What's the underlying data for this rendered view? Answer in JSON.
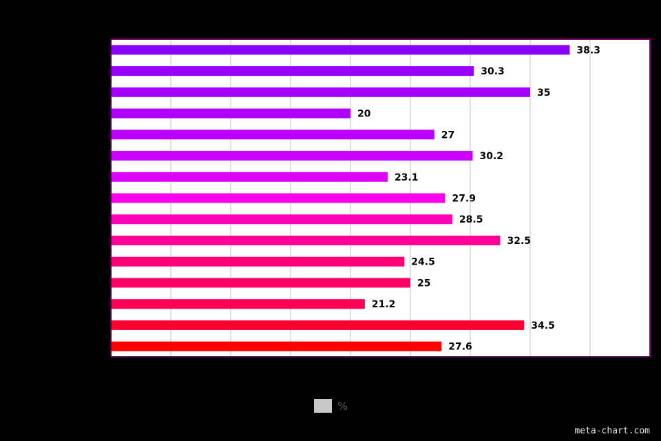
{
  "chart_data": {
    "type": "bar",
    "orientation": "horizontal",
    "categories": [
      "",
      "",
      "",
      "",
      "",
      "",
      "",
      "",
      "",
      "",
      "",
      "",
      "",
      "",
      ""
    ],
    "series": [
      {
        "name": "%",
        "values": [
          38.3,
          30.3,
          35,
          20,
          27,
          30.2,
          23.1,
          27.9,
          28.5,
          32.5,
          24.5,
          25,
          21.2,
          34.5,
          27.6
        ],
        "labels": [
          "38.3",
          "30.3",
          "35",
          "20",
          "27",
          "30.2",
          "23.1",
          "27.9",
          "28.5",
          "32.5",
          "24.5",
          "25",
          "21.2",
          "34.5",
          "27.6"
        ]
      }
    ],
    "colors": [
      "#8a00ff",
      "#9a00ff",
      "#a500ff",
      "#b000ff",
      "#bb00ff",
      "#cc00ff",
      "#dd00ff",
      "#ff00ee",
      "#ff00bb",
      "#ff0099",
      "#ff0077",
      "#ff0066",
      "#ff0055",
      "#ff0033",
      "#ff0000"
    ],
    "xlim": [
      0,
      45
    ],
    "x_ticks": 9,
    "grid": true,
    "plot_background": "#ffffff",
    "plot_border_color": "#8a0080",
    "legend_position": "bottom",
    "legend_color": "#c8c8c8"
  },
  "legend": {
    "label": "%"
  },
  "watermark": "meta-chart.com"
}
